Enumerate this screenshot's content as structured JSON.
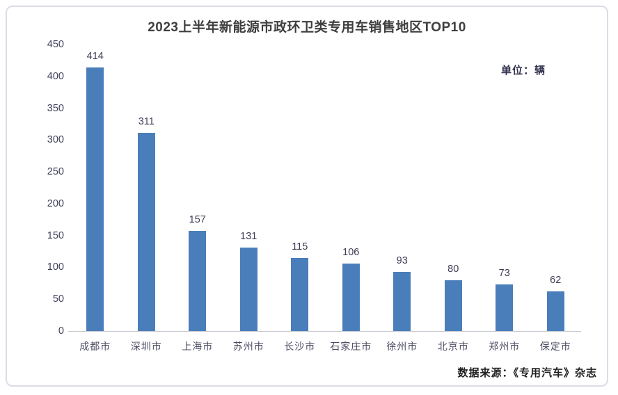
{
  "chart_data": {
    "type": "bar",
    "title": "2023上半年新能源市政环卫类专用车销售地区TOP10",
    "unit_label": "单位：辆",
    "categories": [
      "成都市",
      "深圳市",
      "上海市",
      "苏州市",
      "长沙市",
      "石家庄市",
      "徐州市",
      "北京市",
      "郑州市",
      "保定市"
    ],
    "values": [
      414,
      311,
      157,
      131,
      115,
      106,
      93,
      80,
      73,
      62
    ],
    "xlabel": "",
    "ylabel": "",
    "ylim": [
      0,
      450
    ],
    "ytick_step": 50,
    "grid": false,
    "legend": "none",
    "data_labels": true,
    "source": "数据来源：《专用汽车》杂志",
    "colors": {
      "bar": "#4a7ebb",
      "title": "#3f3f3f",
      "value_label": "#3c3c55",
      "axis_text": "#3f3f5a",
      "axis_line": "#c6c6cf",
      "unit_label": "#33334f",
      "source_text": "#1f1f1f",
      "card_border": "#dcdce6",
      "background": "#ffffff"
    }
  }
}
